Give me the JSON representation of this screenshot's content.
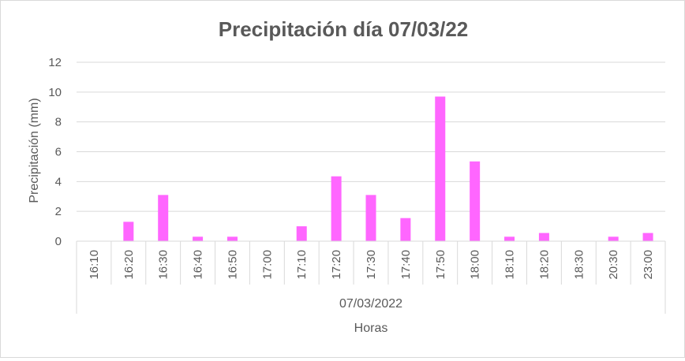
{
  "chart_data": {
    "type": "bar",
    "title": "Precipitación día 07/03/22",
    "ylabel": "Precipitación (mm)",
    "xlabel": "Horas",
    "group_label": "07/03/2022",
    "categories": [
      "16:10",
      "16:20",
      "16:30",
      "16:40",
      "16:50",
      "17:00",
      "17:10",
      "17:20",
      "17:30",
      "17:40",
      "17:50",
      "18:00",
      "18:10",
      "18:20",
      "18:30",
      "20:30",
      "23:00"
    ],
    "values": [
      0,
      1.3,
      3.1,
      0.3,
      0.3,
      0,
      1.0,
      4.35,
      3.1,
      1.55,
      9.7,
      5.35,
      0.3,
      0.55,
      0,
      0.3,
      0.55
    ],
    "ylim": [
      0,
      12
    ],
    "yticks": [
      0,
      2,
      4,
      6,
      8,
      10,
      12
    ],
    "grid": true,
    "legend": "none",
    "bar_color": "#ff66ff"
  }
}
